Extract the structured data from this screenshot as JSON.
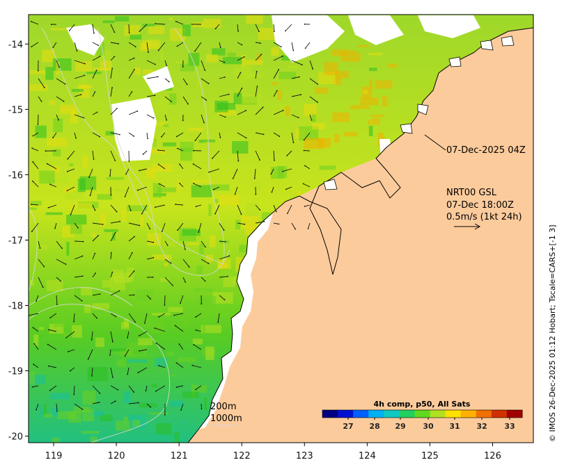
{
  "map": {
    "x_ticks": [
      "119",
      "120",
      "121",
      "122",
      "123",
      "124",
      "125",
      "126"
    ],
    "y_ticks": [
      "-14",
      "-15",
      "-16",
      "-17",
      "-18",
      "-19",
      "-20"
    ],
    "x_range": [
      118.6,
      126.65
    ],
    "y_range": [
      -20.1,
      -13.55
    ],
    "land_color": "#fccb9c",
    "ocean_colors": [
      "#f0b000",
      "#e8dc10",
      "#b8e020",
      "#6cd020",
      "#2cc020",
      "#18c0a0"
    ],
    "date_stamp": "07-Dec-2025 04Z",
    "current_source": "NRT00 GSL",
    "current_time": "07-Dec 18:00Z",
    "vector_scale": "0.5m/s (1kt 24h)",
    "isobath_200": "200m",
    "isobath_1000": "1000m"
  },
  "colorbar": {
    "title": "4h comp, p50, All Sats",
    "ticks": [
      "27",
      "28",
      "29",
      "30",
      "31",
      "32",
      "33"
    ],
    "colors": [
      "#000080",
      "#0010d0",
      "#0060ff",
      "#00b0f0",
      "#10c8c0",
      "#20d060",
      "#60d820",
      "#b0e020",
      "#ffe000",
      "#ffb000",
      "#f07000",
      "#d03000",
      "#a00000"
    ]
  },
  "credit": "© IMOS 26-Dec-2025 01:12 Hobart; Tscale=CARS+[-1 3]"
}
